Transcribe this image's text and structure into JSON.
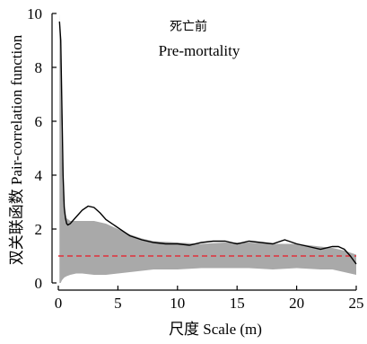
{
  "chart_data": {
    "type": "line",
    "title_cn": "死亡前",
    "title_en": "Pre-mortality",
    "xlabel": "尺度  Scale (m)",
    "ylabel": "双关联函数  Pair-correlation function",
    "xlim": [
      0,
      25
    ],
    "ylim": [
      0,
      10
    ],
    "x_ticks": [
      0,
      5,
      10,
      15,
      20,
      25
    ],
    "y_ticks": [
      0,
      2,
      4,
      6,
      8,
      10
    ],
    "grid": false,
    "colors": {
      "observed": "#000000",
      "envelope": "#a9a9a9",
      "reference": "#e0303a"
    },
    "reference_line": {
      "y": 1.0,
      "style": "dashed"
    },
    "observed": {
      "x": [
        0.1,
        0.2,
        0.3,
        0.4,
        0.5,
        0.6,
        0.7,
        0.8,
        1.0,
        1.2,
        1.5,
        2.0,
        2.5,
        3.0,
        3.5,
        4.0,
        5.0,
        6.0,
        7.0,
        8.0,
        9.0,
        10.0,
        11.0,
        12.0,
        13.0,
        14.0,
        15.0,
        16.0,
        17.0,
        18.0,
        19.0,
        20.0,
        21.0,
        22.0,
        23.0,
        23.5,
        24.0,
        24.5,
        25.0
      ],
      "y": [
        9.7,
        9.0,
        6.5,
        4.0,
        2.8,
        2.4,
        2.2,
        2.15,
        2.2,
        2.3,
        2.45,
        2.7,
        2.85,
        2.8,
        2.6,
        2.35,
        2.05,
        1.75,
        1.6,
        1.5,
        1.45,
        1.45,
        1.4,
        1.5,
        1.55,
        1.55,
        1.45,
        1.55,
        1.5,
        1.45,
        1.6,
        1.45,
        1.35,
        1.25,
        1.35,
        1.35,
        1.25,
        1.0,
        0.7
      ]
    },
    "envelope": {
      "x": [
        0.1,
        0.2,
        0.3,
        0.4,
        0.5,
        0.7,
        1.0,
        1.5,
        2.0,
        3.0,
        4.0,
        5.0,
        6.0,
        7.0,
        8.0,
        10.0,
        12.0,
        14.0,
        16.0,
        18.0,
        20.0,
        22.0,
        23.0,
        24.0,
        25.0
      ],
      "upper": [
        10.0,
        8.0,
        5.0,
        3.5,
        2.7,
        2.4,
        2.3,
        2.3,
        2.3,
        2.3,
        2.2,
        2.0,
        1.8,
        1.65,
        1.55,
        1.5,
        1.45,
        1.5,
        1.5,
        1.45,
        1.45,
        1.35,
        1.3,
        1.2,
        1.05
      ],
      "lower": [
        0.0,
        0.0,
        0.1,
        0.15,
        0.2,
        0.25,
        0.3,
        0.35,
        0.35,
        0.3,
        0.3,
        0.35,
        0.4,
        0.45,
        0.5,
        0.5,
        0.55,
        0.55,
        0.55,
        0.5,
        0.55,
        0.5,
        0.5,
        0.4,
        0.3
      ]
    }
  }
}
